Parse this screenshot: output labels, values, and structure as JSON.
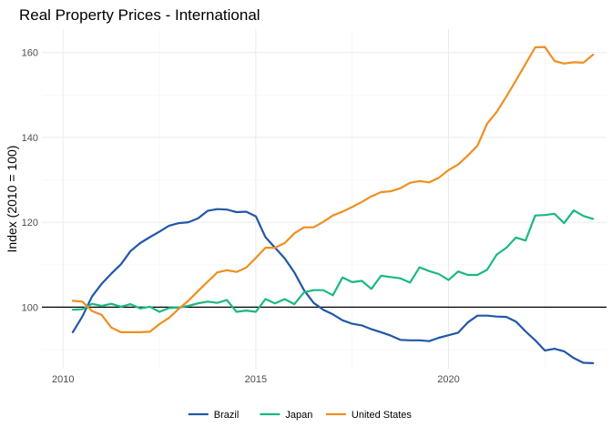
{
  "chart_data": {
    "type": "line",
    "title": "Real Property Prices - International",
    "xlabel": "",
    "ylabel": "Index (2010 = 100)",
    "xlim": [
      2009.45,
      2024.1
    ],
    "ylim": [
      85.5,
      165.5
    ],
    "x_ticks": [
      2010,
      2015,
      2020
    ],
    "y_ticks": [
      100,
      120,
      140,
      160
    ],
    "x_tick_labels": [
      "2010",
      "2015",
      "2020"
    ],
    "y_tick_labels": [
      "100",
      "120",
      "140",
      "160"
    ],
    "reference_line": 100,
    "grid": true,
    "legend_position": "bottom",
    "series": [
      {
        "name": "Brazil",
        "color": "#2257a8",
        "x": [
          2010.25,
          2010.5,
          2010.75,
          2011.0,
          2011.25,
          2011.5,
          2011.75,
          2012.0,
          2012.25,
          2012.5,
          2012.75,
          2013.0,
          2013.25,
          2013.5,
          2013.75,
          2014.0,
          2014.25,
          2014.5,
          2014.75,
          2015.0,
          2015.25,
          2015.5,
          2015.75,
          2016.0,
          2016.25,
          2016.5,
          2016.75,
          2017.0,
          2017.25,
          2017.5,
          2017.75,
          2018.0,
          2018.25,
          2018.5,
          2018.75,
          2019.0,
          2019.25,
          2019.5,
          2019.75,
          2020.0,
          2020.25,
          2020.5,
          2020.75,
          2021.0,
          2021.25,
          2021.5,
          2021.75,
          2022.0,
          2022.25,
          2022.5,
          2022.75,
          2023.0,
          2023.25,
          2023.5,
          2023.75
        ],
        "values": [
          94.1,
          97.8,
          102.5,
          105.5,
          107.9,
          110.1,
          113.2,
          115.1,
          116.5,
          117.8,
          119.2,
          119.8,
          120.0,
          120.9,
          122.7,
          123.1,
          123.0,
          122.4,
          122.5,
          121.4,
          116.5,
          114.0,
          111.5,
          108.2,
          104.0,
          101.0,
          99.4,
          98.3,
          96.9,
          96.1,
          95.7,
          94.8,
          94.1,
          93.3,
          92.3,
          92.2,
          92.2,
          92.0,
          92.8,
          93.4,
          94.0,
          96.4,
          98.0,
          98.0,
          97.8,
          97.7,
          96.6,
          94.3,
          92.2,
          89.8,
          90.2,
          89.6,
          88.0,
          86.9,
          86.8
        ]
      },
      {
        "name": "Japan",
        "color": "#1bb884",
        "x": [
          2010.25,
          2010.5,
          2010.75,
          2011.0,
          2011.25,
          2011.5,
          2011.75,
          2012.0,
          2012.25,
          2012.5,
          2012.75,
          2013.0,
          2013.25,
          2013.5,
          2013.75,
          2014.0,
          2014.25,
          2014.5,
          2014.75,
          2015.0,
          2015.25,
          2015.5,
          2015.75,
          2016.0,
          2016.25,
          2016.5,
          2016.75,
          2017.0,
          2017.25,
          2017.5,
          2017.75,
          2018.0,
          2018.25,
          2018.5,
          2018.75,
          2019.0,
          2019.25,
          2019.5,
          2019.75,
          2020.0,
          2020.25,
          2020.5,
          2020.75,
          2021.0,
          2021.25,
          2021.5,
          2021.75,
          2022.0,
          2022.25,
          2022.5,
          2022.75,
          2023.0,
          2023.25,
          2023.5,
          2023.75
        ],
        "values": [
          99.4,
          99.5,
          100.8,
          100.3,
          100.8,
          100.1,
          100.7,
          99.7,
          100.1,
          98.9,
          99.8,
          99.9,
          100.3,
          100.9,
          101.3,
          101.0,
          101.7,
          98.9,
          99.2,
          98.9,
          101.9,
          100.9,
          101.9,
          100.7,
          103.5,
          104.0,
          104.0,
          102.8,
          107.0,
          105.9,
          106.2,
          104.3,
          107.4,
          107.1,
          106.8,
          105.8,
          109.4,
          108.5,
          107.8,
          106.4,
          108.4,
          107.6,
          107.6,
          108.8,
          112.4,
          114.0,
          116.4,
          115.7,
          121.6,
          121.7,
          122.0,
          119.8,
          122.8,
          121.5,
          120.8
        ]
      },
      {
        "name": "United States",
        "color": "#ee8f21",
        "x": [
          2010.25,
          2010.5,
          2010.75,
          2011.0,
          2011.25,
          2011.5,
          2011.75,
          2012.0,
          2012.25,
          2012.5,
          2012.75,
          2013.0,
          2013.25,
          2013.5,
          2013.75,
          2014.0,
          2014.25,
          2014.5,
          2014.75,
          2015.0,
          2015.25,
          2015.5,
          2015.75,
          2016.0,
          2016.25,
          2016.5,
          2016.75,
          2017.0,
          2017.25,
          2017.5,
          2017.75,
          2018.0,
          2018.25,
          2018.5,
          2018.75,
          2019.0,
          2019.25,
          2019.5,
          2019.75,
          2020.0,
          2020.25,
          2020.5,
          2020.75,
          2021.0,
          2021.25,
          2021.5,
          2021.75,
          2022.0,
          2022.25,
          2022.5,
          2022.75,
          2023.0,
          2023.25,
          2023.5,
          2023.75
        ],
        "values": [
          101.5,
          101.3,
          99.1,
          98.2,
          95.2,
          94.1,
          94.1,
          94.1,
          94.2,
          96.0,
          97.5,
          99.6,
          101.5,
          103.8,
          106.0,
          108.2,
          108.7,
          108.3,
          109.3,
          111.6,
          114.0,
          114.0,
          115.1,
          117.4,
          118.8,
          118.8,
          120.1,
          121.6,
          122.5,
          123.6,
          124.8,
          126.1,
          127.1,
          127.3,
          128.0,
          129.3,
          129.7,
          129.4,
          130.5,
          132.3,
          133.6,
          135.7,
          138.0,
          143.2,
          146.0,
          149.6,
          153.4,
          157.3,
          161.2,
          161.3,
          158.0,
          157.4,
          157.7,
          157.6,
          159.5
        ]
      }
    ]
  }
}
